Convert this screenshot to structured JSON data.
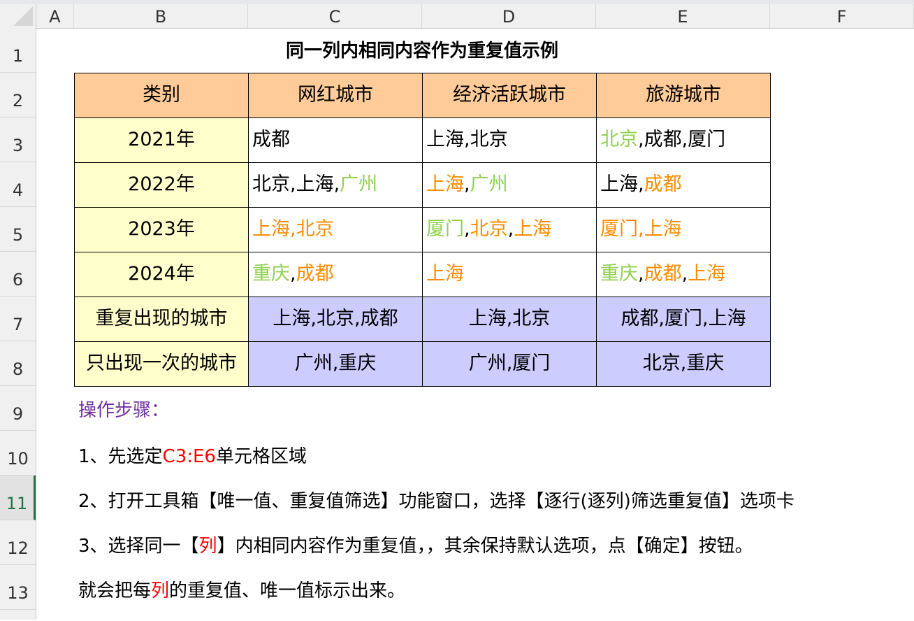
{
  "columns": [
    "A",
    "B",
    "C",
    "D",
    "E",
    "F"
  ],
  "rows": [
    "1",
    "2",
    "3",
    "4",
    "5",
    "6",
    "7",
    "8",
    "9",
    "10",
    "11",
    "12",
    "13"
  ],
  "selected_row": "11",
  "colors": {
    "green": "#92D050",
    "orange": "#FF8C00",
    "red": "#FF0000",
    "purple": "#7030A0",
    "header_fill": "#FFCC99",
    "label_fill": "#FFFFCC",
    "result_fill": "#CCCCFF"
  },
  "title": "同一列内相同内容作为重复值示例",
  "table": {
    "headers": [
      "类别",
      "网红城市",
      "经济活跃城市",
      "旅游城市"
    ],
    "years": [
      "2021年",
      "2022年",
      "2023年",
      "2024年"
    ],
    "cells": [
      [
        [
          {
            "t": "成都",
            "c": "#000"
          }
        ],
        [
          {
            "t": "上海,北京",
            "c": "#000"
          }
        ],
        [
          {
            "t": "北京",
            "c": "#92D050"
          },
          {
            "t": ",成都,厦门",
            "c": "#000"
          }
        ]
      ],
      [
        [
          {
            "t": "北京,上海,",
            "c": "#000"
          },
          {
            "t": "广州",
            "c": "#92D050"
          }
        ],
        [
          {
            "t": "上海",
            "c": "#FF8C00"
          },
          {
            "t": ",",
            "c": "#000"
          },
          {
            "t": "广州",
            "c": "#92D050"
          }
        ],
        [
          {
            "t": "上海,",
            "c": "#000"
          },
          {
            "t": "成都",
            "c": "#FF8C00"
          }
        ]
      ],
      [
        [
          {
            "t": "上海,北京",
            "c": "#FF8C00"
          }
        ],
        [
          {
            "t": "厦门",
            "c": "#92D050"
          },
          {
            "t": ",",
            "c": "#000"
          },
          {
            "t": "北京",
            "c": "#FF8C00"
          },
          {
            "t": ",",
            "c": "#000"
          },
          {
            "t": "上海",
            "c": "#FF8C00"
          }
        ],
        [
          {
            "t": "厦门,上海",
            "c": "#FF8C00"
          }
        ]
      ],
      [
        [
          {
            "t": "重庆",
            "c": "#92D050"
          },
          {
            "t": ",",
            "c": "#000"
          },
          {
            "t": "成都",
            "c": "#FF8C00"
          }
        ],
        [
          {
            "t": "上海",
            "c": "#FF8C00"
          }
        ],
        [
          {
            "t": "重庆",
            "c": "#92D050"
          },
          {
            "t": ",",
            "c": "#000"
          },
          {
            "t": "成都",
            "c": "#FF8C00"
          },
          {
            "t": ",",
            "c": "#000"
          },
          {
            "t": "上海",
            "c": "#FF8C00"
          }
        ]
      ]
    ],
    "dup_label": "重复出现的城市",
    "dup": [
      "上海,北京,成都",
      "上海,北京",
      "成都,厦门,上海"
    ],
    "uniq_label": "只出现一次的城市",
    "uniq": [
      "广州,重庆",
      "广州,厦门",
      "北京,重庆"
    ]
  },
  "steps": {
    "heading": "操作步骤：",
    "s1a": "1、先选定",
    "s1b": "C3:E6",
    "s1c": "单元格区域",
    "s2": "2、打开工具箱【唯一值、重复值筛选】功能窗口，选择【逐行(逐列)筛选重复值】选项卡",
    "s3a": "3、选择同一【",
    "s3b": "列",
    "s3c": "】内相同内容作为重复值，，其余保持默认选项，点【确定】按钮。",
    "s4a": "就会把每",
    "s4b": "列",
    "s4c": "的重复值、唯一值标示出来。"
  }
}
